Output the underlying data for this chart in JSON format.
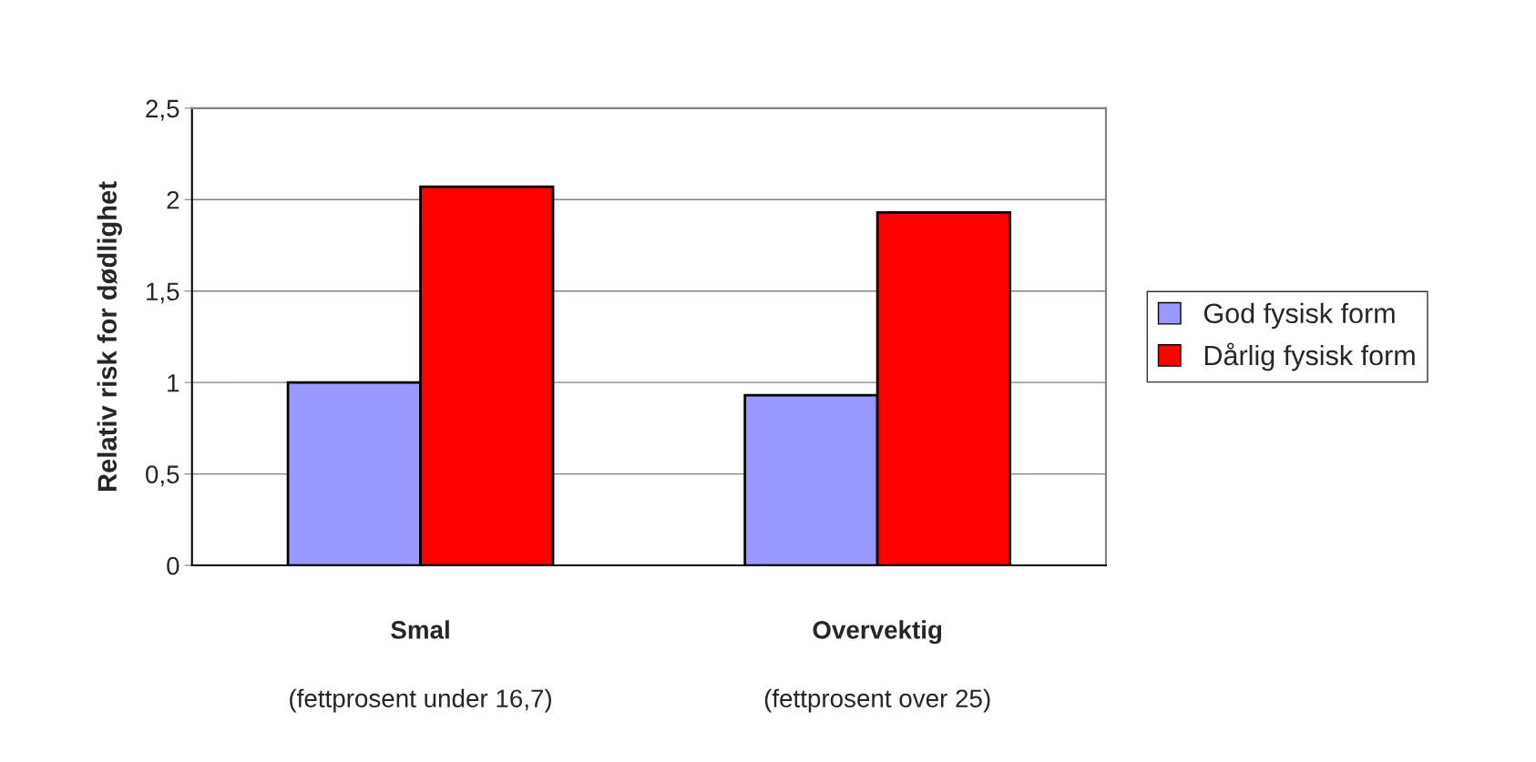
{
  "chart_data": {
    "type": "bar",
    "ylabel": "Relativ risk for dødlighet",
    "categories": [
      "Smal\n(fettprosent under 16,7)",
      "Overvektig\n(fettprosent over 25)"
    ],
    "series": [
      {
        "name": "God fysisk form",
        "color": "#9999ff",
        "values": [
          1.0,
          0.93
        ]
      },
      {
        "name": "Dårlig fysisk form",
        "color": "#ff0000",
        "values": [
          2.07,
          1.93
        ]
      }
    ],
    "ylim": [
      0,
      2.5
    ],
    "yticks": [
      0,
      {
        "value": 0.5,
        "label": "0,5"
      },
      1,
      {
        "value": 1.5,
        "label": "1,5"
      },
      2,
      {
        "value": 2.5,
        "label": "2,5"
      }
    ],
    "grid": "y",
    "legend": "right"
  }
}
